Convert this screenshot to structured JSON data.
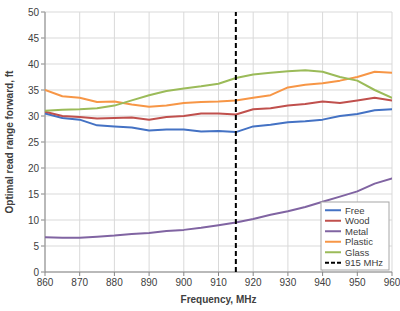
{
  "chart_data": {
    "type": "line",
    "x_label": "Frequency, MHz",
    "y_label": "Optimal read range forward, ft",
    "x": [
      860,
      865,
      870,
      875,
      880,
      885,
      890,
      895,
      900,
      905,
      910,
      915,
      920,
      925,
      930,
      935,
      940,
      945,
      950,
      955,
      960
    ],
    "series": [
      {
        "name": "Free",
        "color": "#4472c4",
        "values": [
          30.5,
          29.6,
          29.3,
          28.2,
          28,
          27.8,
          27.2,
          27.4,
          27.4,
          27,
          27.1,
          26.9,
          28,
          28.3,
          28.8,
          29,
          29.3,
          30,
          30.4,
          31.1,
          31.3
        ]
      },
      {
        "name": "Wood",
        "color": "#c0504d",
        "values": [
          30.8,
          30,
          29.8,
          29.5,
          29.6,
          29.7,
          29.3,
          29.8,
          30,
          30.5,
          30.5,
          30.3,
          31.3,
          31.5,
          32,
          32.3,
          32.8,
          32.5,
          33,
          33.5,
          33
        ]
      },
      {
        "name": "Metal",
        "color": "#8064a2",
        "values": [
          6.7,
          6.6,
          6.6,
          6.8,
          7,
          7.3,
          7.5,
          7.9,
          8.1,
          8.5,
          9,
          9.5,
          10.2,
          11,
          11.7,
          12.5,
          13.5,
          14.5,
          15.5,
          17,
          18
        ]
      },
      {
        "name": "Plastic",
        "color": "#f79646",
        "values": [
          35,
          33.8,
          33.5,
          32.7,
          32.8,
          32.2,
          31.8,
          32,
          32.5,
          32.7,
          32.8,
          33,
          33.5,
          34,
          35.5,
          36,
          36.3,
          36.8,
          37.5,
          38.5,
          38.3
        ]
      },
      {
        "name": "Glass",
        "color": "#9bbb59",
        "values": [
          31,
          31.2,
          31.3,
          31.5,
          32,
          33,
          34,
          34.8,
          35.3,
          35.7,
          36.2,
          37.3,
          38,
          38.3,
          38.6,
          38.8,
          38.5,
          37.5,
          36.8,
          35,
          33.5
        ]
      },
      {
        "name": "915 MHz",
        "color": "#000000",
        "line_style": "dashed",
        "x": [
          915,
          915
        ],
        "values": [
          0,
          50
        ]
      }
    ],
    "xlim": [
      860,
      960
    ],
    "xticks": [
      860,
      870,
      880,
      890,
      900,
      910,
      920,
      930,
      940,
      950,
      960
    ],
    "ylim": [
      0,
      50
    ],
    "yticks": [
      0,
      5,
      10,
      15,
      20,
      25,
      30,
      35,
      40,
      45,
      50
    ],
    "grid": true,
    "legend": "lower right"
  }
}
